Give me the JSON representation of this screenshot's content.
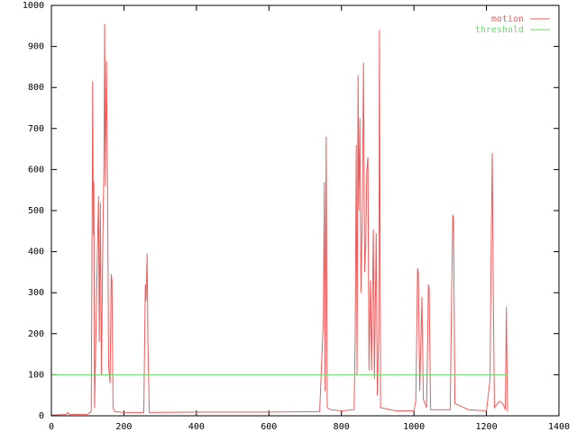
{
  "chart_data": {
    "type": "line",
    "series": [
      {
        "name": "motion",
        "color": "#f05a5a",
        "x": [
          0,
          40,
          45,
          50,
          100,
          110,
          113,
          114,
          116,
          117,
          119,
          125,
          130,
          132,
          135,
          138,
          142,
          145,
          147,
          149,
          152,
          155,
          158,
          162,
          165,
          167,
          170,
          175,
          200,
          255,
          259,
          261,
          264,
          266,
          270,
          400,
          600,
          740,
          750,
          753,
          755,
          758,
          761,
          770,
          800,
          835,
          838,
          841,
          843,
          846,
          848,
          851,
          854,
          858,
          861,
          864,
          867,
          870,
          873,
          876,
          880,
          883,
          888,
          891,
          896,
          899,
          903,
          905,
          908,
          950,
          1000,
          1005,
          1010,
          1012,
          1016,
          1022,
          1026,
          1035,
          1040,
          1042,
          1046,
          1100,
          1104,
          1107,
          1109,
          1113,
          1150,
          1200,
          1210,
          1213,
          1216,
          1219,
          1222,
          1235,
          1245,
          1252,
          1255,
          1258
        ],
        "values": [
          2,
          3,
          8,
          3,
          4,
          10,
          570,
          815,
          440,
          570,
          20,
          310,
          535,
          180,
          520,
          100,
          430,
          610,
          955,
          560,
          865,
          550,
          120,
          80,
          345,
          330,
          20,
          10,
          8,
          8,
          320,
          280,
          395,
          190,
          8,
          9,
          9,
          10,
          230,
          570,
          60,
          680,
          20,
          15,
          12,
          15,
          200,
          660,
          100,
          830,
          500,
          725,
          300,
          510,
          860,
          350,
          420,
          600,
          630,
          110,
          330,
          110,
          455,
          90,
          445,
          50,
          200,
          940,
          20,
          12,
          12,
          35,
          360,
          350,
          60,
          290,
          40,
          20,
          320,
          310,
          15,
          15,
          300,
          490,
          480,
          30,
          15,
          12,
          90,
          410,
          640,
          290,
          20,
          35,
          30,
          15,
          265,
          10
        ]
      },
      {
        "name": "threshold",
        "color": "#66dd66",
        "x": [
          0,
          1260
        ],
        "values": [
          100,
          100
        ]
      }
    ],
    "xlim": [
      0,
      1400
    ],
    "xticks": [
      0,
      200,
      400,
      600,
      800,
      1000,
      1200,
      1400
    ],
    "ylim": [
      0,
      1000
    ],
    "yticks": [
      0,
      100,
      200,
      300,
      400,
      500,
      600,
      700,
      800,
      900,
      1000
    ],
    "legend": "top-right"
  }
}
